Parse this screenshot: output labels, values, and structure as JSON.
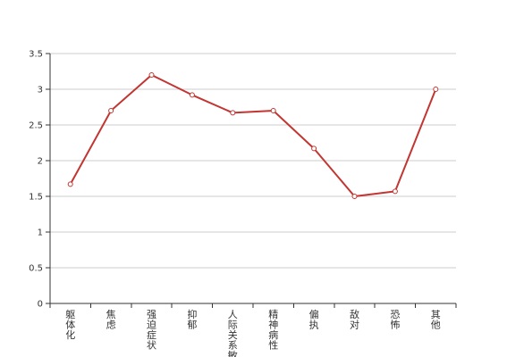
{
  "chart_data": {
    "type": "line",
    "title": "",
    "xlabel": "",
    "ylabel": "",
    "categories": [
      "躯体化",
      "焦虑",
      "强迫症状",
      "抑郁",
      "人际关系敏感",
      "精神病性",
      "偏执",
      "敌对",
      "恐怖",
      "其他"
    ],
    "series": [
      {
        "values": [
          1.67,
          2.7,
          3.2,
          2.92,
          2.67,
          2.7,
          2.17,
          1.5,
          1.57,
          3.0
        ],
        "color": "#c23531"
      }
    ],
    "yticks": [
      "0",
      "0.5",
      "1",
      "1.5",
      "2",
      "2.5",
      "3",
      "3.5"
    ],
    "ylim": [
      0,
      3.5
    ],
    "grid": true,
    "legend": "none"
  }
}
